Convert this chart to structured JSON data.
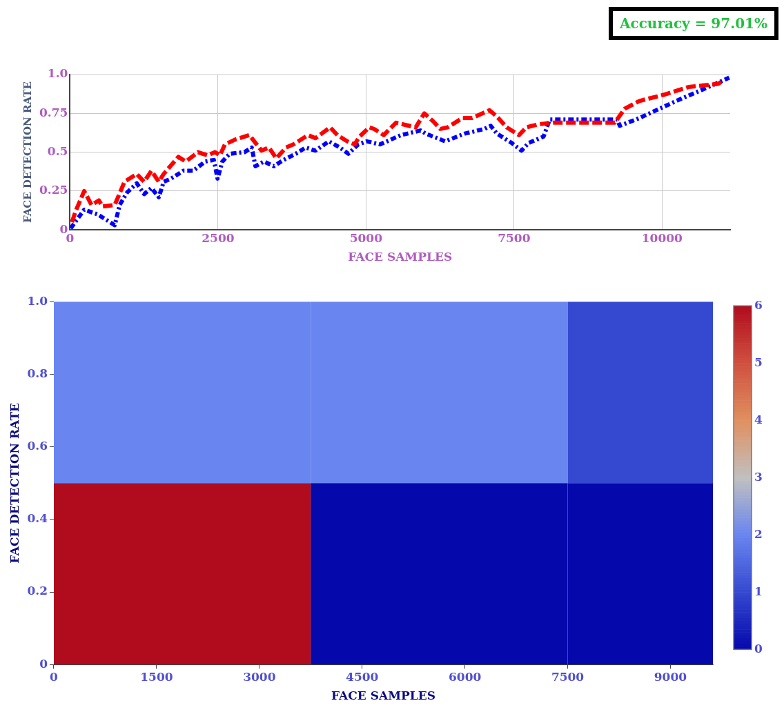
{
  "chart_data": [
    {
      "type": "line",
      "xlabel": "FACE SAMPLES",
      "ylabel": "FACE DETECTION RATE",
      "annotations": [
        "Accuracy = 97.01%"
      ],
      "xlim": [
        0,
        11150
      ],
      "xticks": [
        0,
        2500,
        5000,
        7500,
        10000
      ],
      "ylim": [
        0,
        1
      ],
      "yticks": [
        0,
        0.25,
        0.5,
        0.75,
        {
          "value": 1,
          "label": "1.0"
        }
      ],
      "grid": true,
      "marker": "none",
      "series": [
        {
          "color": "#ff0000",
          "line_style": "dashed",
          "x": [
            33,
            95,
            240,
            364,
            488,
            550,
            756,
            921,
            1128,
            1252,
            1376,
            1500,
            1583,
            1830,
            1955,
            2161,
            2326,
            2450,
            2533,
            2616,
            2781,
            3029,
            3235,
            3360,
            3484,
            3649,
            3773,
            4021,
            4145,
            4393,
            4517,
            4682,
            4806,
            4889,
            5054,
            5133,
            5299,
            5507,
            5839,
            5984,
            6130,
            6254,
            6379,
            6628,
            6794,
            7085,
            7209,
            7375,
            7583,
            7708,
            7915,
            8164,
            9202,
            9369,
            9618,
            10033,
            10449,
            10947,
            11030
          ],
          "values": [
            0.05,
            0.12,
            0.25,
            0.16,
            0.19,
            0.15,
            0.16,
            0.31,
            0.36,
            0.31,
            0.38,
            0.31,
            0.36,
            0.47,
            0.44,
            0.5,
            0.48,
            0.5,
            0.48,
            0.55,
            0.58,
            0.61,
            0.51,
            0.53,
            0.46,
            0.53,
            0.55,
            0.61,
            0.59,
            0.66,
            0.61,
            0.57,
            0.55,
            0.6,
            0.66,
            0.65,
            0.61,
            0.69,
            0.66,
            0.75,
            0.7,
            0.65,
            0.66,
            0.72,
            0.72,
            0.77,
            0.73,
            0.66,
            0.61,
            0.66,
            0.68,
            0.69,
            0.69,
            0.78,
            0.83,
            0.87,
            0.92,
            0.94,
            0.96
          ]
        },
        {
          "color": "#0000ff",
          "line_style": "dotted",
          "x": [
            12,
            240,
            467,
            550,
            756,
            839,
            963,
            1128,
            1252,
            1376,
            1500,
            1583,
            1707,
            1913,
            2079,
            2285,
            2430,
            2492,
            2574,
            2698,
            2946,
            3070,
            3132,
            3277,
            3442,
            3607,
            3814,
            3979,
            4145,
            4372,
            4558,
            4702,
            4868,
            5012,
            5237,
            5590,
            5922,
            6005,
            6337,
            6669,
            7002,
            7106,
            7209,
            7458,
            7625,
            7749,
            7998,
            8102,
            9244,
            9286,
            9618,
            10241,
            10905,
            11134
          ],
          "values": [
            0.01,
            0.13,
            0.1,
            0.08,
            0.03,
            0.16,
            0.24,
            0.3,
            0.23,
            0.27,
            0.21,
            0.31,
            0.33,
            0.38,
            0.38,
            0.44,
            0.45,
            0.33,
            0.44,
            0.49,
            0.5,
            0.53,
            0.41,
            0.44,
            0.41,
            0.45,
            0.49,
            0.53,
            0.51,
            0.57,
            0.53,
            0.49,
            0.55,
            0.57,
            0.55,
            0.61,
            0.64,
            0.62,
            0.57,
            0.62,
            0.65,
            0.67,
            0.62,
            0.56,
            0.51,
            0.56,
            0.6,
            0.71,
            0.71,
            0.67,
            0.72,
            0.83,
            0.94,
            0.98
          ]
        }
      ]
    },
    {
      "type": "heatmap",
      "xlabel": "FACE SAMPLES",
      "ylabel": "FACE DETECTION RATE",
      "x": [
        1875,
        5625,
        9375
      ],
      "y": [
        0.75,
        0.25
      ],
      "cells": [
        [
          2,
          2,
          1
        ],
        [
          6,
          0,
          0
        ]
      ],
      "xlim": [
        0,
        9620
      ],
      "xticks": [
        0,
        1500,
        3000,
        4500,
        6000,
        7500,
        9000
      ],
      "ylim": [
        0,
        1
      ],
      "yticks": [
        0,
        0.2,
        0.4,
        0.6,
        0.8,
        {
          "value": 1,
          "label": "1.0"
        }
      ],
      "clim": [
        0,
        6
      ],
      "cticks": [
        0,
        1,
        2,
        3,
        4,
        5,
        6
      ]
    }
  ]
}
